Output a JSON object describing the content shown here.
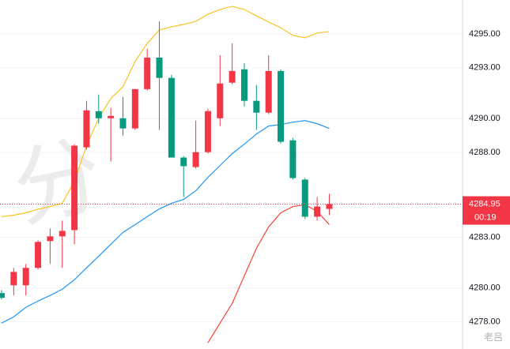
{
  "chart_data": {
    "type": "candlestick",
    "ylim": [
      4276.4,
      4297.0
    ],
    "yticks": [
      {
        "value": 4295,
        "label": "4295.00"
      },
      {
        "value": 4293,
        "label": "4293.00"
      },
      {
        "value": 4290,
        "label": "4290.00"
      },
      {
        "value": 4288,
        "label": "4288.00"
      },
      {
        "value": 4283,
        "label": "4283.00"
      },
      {
        "value": 4280,
        "label": "4280.00"
      },
      {
        "value": 4278,
        "label": "4278.00"
      }
    ],
    "grid": true,
    "up_color": "#f23645",
    "down_color": "#089981",
    "open": [
      4279.7,
      4280.16,
      4280.16,
      4281.19,
      4282.77,
      4283.05,
      4283.42,
      4288.3,
      4290.44,
      4290.02,
      4290.02,
      4289.42,
      4291.74,
      4293.6,
      4292.4,
      4287.7,
      4287.14,
      4288.02,
      4290.02,
      4292.12,
      4292.91,
      4291.05,
      4290.35,
      4292.81,
      4288.72,
      4286.4,
      4284.21,
      4284.67
    ],
    "high": [
      4279.88,
      4281.19,
      4281.42,
      4282.81,
      4283.51,
      4283.98,
      4288.49,
      4291.05,
      4291.42,
      4290.63,
      4291.28,
      4291.74,
      4294.12,
      4295.74,
      4292.58,
      4287.79,
      4289.88,
      4290.58,
      4293.74,
      4294.44,
      4293.28,
      4291.98,
      4293.74,
      4292.91,
      4288.86,
      4286.49,
      4285.37,
      4285.56
    ],
    "low": [
      4279.33,
      4279.56,
      4279.56,
      4281.09,
      4281.42,
      4281.19,
      4282.58,
      4288.16,
      4289.7,
      4287.47,
      4289.0,
      4289.33,
      4291.65,
      4289.33,
      4287.7,
      4285.37,
      4287.05,
      4287.93,
      4289.56,
      4292.02,
      4290.72,
      4289.33,
      4290.26,
      4288.53,
      4286.4,
      4284.07,
      4283.98,
      4284.3
    ],
    "close": [
      4279.42,
      4280.95,
      4281.19,
      4282.72,
      4283.05,
      4283.37,
      4288.4,
      4290.49,
      4290.02,
      4290.16,
      4289.42,
      4291.74,
      4293.6,
      4292.4,
      4287.7,
      4287.19,
      4288.02,
      4290.44,
      4292.07,
      4292.81,
      4291.05,
      4290.35,
      4292.81,
      4288.63,
      4286.49,
      4284.21,
      4284.81,
      4284.95
    ],
    "lines": [
      {
        "color": "#f7c325",
        "values": [
          4284.21,
          4284.3,
          4284.44,
          4284.65,
          4284.81,
          4285.0,
          4286.3,
          4288.4,
          4290.02,
          4291.19,
          4291.88,
          4293.37,
          4294.44,
          4295.23,
          4295.42,
          4295.56,
          4295.74,
          4296.16,
          4296.44,
          4296.63,
          4296.44,
          4296.07,
          4295.7,
          4295.37,
          4294.91,
          4294.77,
          4295.05,
          4295.14
        ]
      },
      {
        "color": "#2196f3",
        "values": [
          4277.93,
          4278.3,
          4278.86,
          4279.23,
          4279.56,
          4279.93,
          4280.49,
          4281.19,
          4281.88,
          4282.58,
          4283.28,
          4283.74,
          4284.21,
          4284.67,
          4285.0,
          4285.23,
          4285.74,
          4286.53,
          4287.23,
          4287.93,
          4288.49,
          4289.09,
          4289.56,
          4289.65,
          4289.79,
          4289.88,
          4289.7,
          4289.42
        ]
      },
      {
        "color": "#f44336",
        "values": [
          null,
          null,
          null,
          null,
          null,
          null,
          null,
          null,
          null,
          null,
          null,
          null,
          null,
          null,
          null,
          null,
          null,
          4276.77,
          4277.93,
          4279.09,
          4280.72,
          4282.35,
          4283.6,
          4284.44,
          4284.81,
          4284.91,
          4284.53,
          4283.74
        ]
      }
    ],
    "last_price": {
      "value": 4284.95,
      "label": "4284.95"
    },
    "countdown": "00:19",
    "background_text": "分",
    "watermark": "老吕"
  }
}
